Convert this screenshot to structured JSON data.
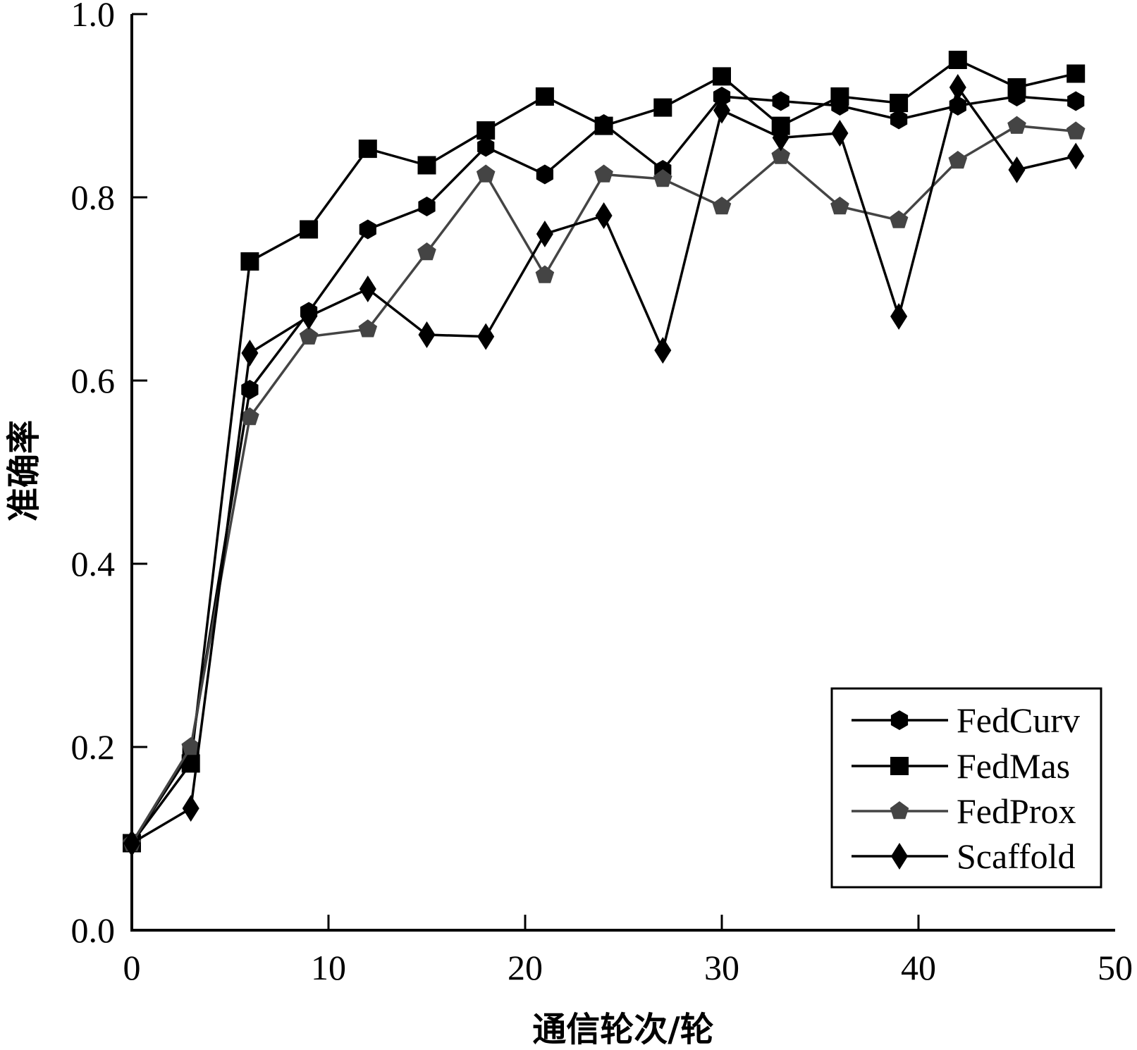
{
  "chart_data": {
    "type": "line",
    "xlabel": "通信轮次/轮",
    "ylabel": "准确率",
    "xlim": [
      0,
      50
    ],
    "ylim": [
      0.0,
      1.0
    ],
    "xticks": [
      "0",
      "10",
      "20",
      "30",
      "40",
      "50"
    ],
    "yticks": [
      "0.0",
      "0.2",
      "0.4",
      "0.6",
      "0.8",
      "1.0"
    ],
    "grid": false,
    "legend_position": "bottom-right",
    "x": [
      0,
      3,
      6,
      9,
      12,
      15,
      18,
      21,
      24,
      27,
      30,
      33,
      36,
      39,
      42,
      45,
      48
    ],
    "series": [
      {
        "name": "FedCurv",
        "marker": "hexagon",
        "color": "#000000",
        "values": [
          0.095,
          0.195,
          0.59,
          0.675,
          0.765,
          0.79,
          0.855,
          0.825,
          0.88,
          0.83,
          0.91,
          0.905,
          0.9,
          0.885,
          0.9,
          0.91,
          0.905
        ]
      },
      {
        "name": "FedMas",
        "marker": "square",
        "color": "#000000",
        "values": [
          0.095,
          0.182,
          0.73,
          0.765,
          0.853,
          0.835,
          0.873,
          0.91,
          0.878,
          0.898,
          0.932,
          0.878,
          0.91,
          0.903,
          0.95,
          0.92,
          0.935
        ]
      },
      {
        "name": "FedProx",
        "marker": "pentagon",
        "color": "#444444",
        "values": [
          0.095,
          0.2,
          0.56,
          0.648,
          0.656,
          0.74,
          0.825,
          0.715,
          0.825,
          0.82,
          0.79,
          0.845,
          0.79,
          0.775,
          0.84,
          0.878,
          0.872
        ]
      },
      {
        "name": "Scaffold",
        "marker": "diamond",
        "color": "#000000",
        "values": [
          0.095,
          0.133,
          0.63,
          0.67,
          0.7,
          0.65,
          0.648,
          0.76,
          0.78,
          0.633,
          0.895,
          0.865,
          0.87,
          0.67,
          0.92,
          0.83,
          0.845
        ]
      }
    ]
  }
}
